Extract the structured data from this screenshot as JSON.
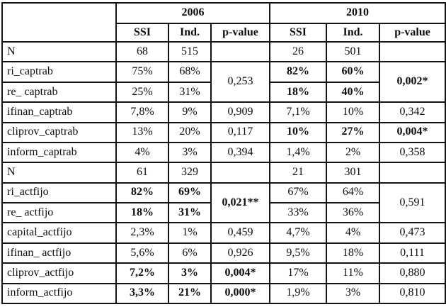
{
  "colors": {
    "background": "#ffffff",
    "border": "#141414",
    "text": "#0d0d0d"
  },
  "table": {
    "year_headers": [
      "2006",
      "2010"
    ],
    "sub_headers": [
      "SSI",
      "Ind.",
      "p-value",
      "SSI",
      "Ind.",
      "p-value"
    ],
    "rows": [
      {
        "cells": [
          {
            "col": "label",
            "text": "N"
          },
          {
            "col": "ssi_2006",
            "text": "68"
          },
          {
            "col": "ind_2006",
            "text": "515"
          },
          {
            "col": "p_2006",
            "text": ""
          },
          {
            "col": "ssi_2010",
            "text": "26"
          },
          {
            "col": "ind_2010",
            "text": "501"
          },
          {
            "col": "p_2010",
            "text": ""
          }
        ]
      },
      {
        "cells": [
          {
            "col": "label",
            "text": "ri_captrab"
          },
          {
            "col": "ssi_2006",
            "text": "75%"
          },
          {
            "col": "ind_2006",
            "text": "68%"
          },
          {
            "col": "p_2006",
            "text": "0,253",
            "rowspan": 2
          },
          {
            "col": "ssi_2010",
            "text": "82%",
            "bold": true
          },
          {
            "col": "ind_2010",
            "text": "60%",
            "bold": true
          },
          {
            "col": "p_2010",
            "text": "0,002*",
            "bold": true,
            "rowspan": 2
          }
        ]
      },
      {
        "cells": [
          {
            "col": "label",
            "text": "re_ captrab"
          },
          {
            "col": "ssi_2006",
            "text": "25%"
          },
          {
            "col": "ind_2006",
            "text": "31%"
          },
          {
            "col": "ssi_2010",
            "text": "18%",
            "bold": true
          },
          {
            "col": "ind_2010",
            "text": "40%",
            "bold": true
          }
        ]
      },
      {
        "cells": [
          {
            "col": "label",
            "text": "ifinan_captrab"
          },
          {
            "col": "ssi_2006",
            "text": "7,8%"
          },
          {
            "col": "ind_2006",
            "text": "9%"
          },
          {
            "col": "p_2006",
            "text": "0,909"
          },
          {
            "col": "ssi_2010",
            "text": "7,1%"
          },
          {
            "col": "ind_2010",
            "text": "10%"
          },
          {
            "col": "p_2010",
            "text": "0,342"
          }
        ]
      },
      {
        "cells": [
          {
            "col": "label",
            "text": "cliprov_captrab"
          },
          {
            "col": "ssi_2006",
            "text": "13%"
          },
          {
            "col": "ind_2006",
            "text": "20%"
          },
          {
            "col": "p_2006",
            "text": "0,117"
          },
          {
            "col": "ssi_2010",
            "text": "10%",
            "bold": true
          },
          {
            "col": "ind_2010",
            "text": "27%",
            "bold": true
          },
          {
            "col": "p_2010",
            "text": "0,004*",
            "bold": true
          }
        ]
      },
      {
        "cells": [
          {
            "col": "label",
            "text": "inform_captrab"
          },
          {
            "col": "ssi_2006",
            "text": "4%"
          },
          {
            "col": "ind_2006",
            "text": "3%"
          },
          {
            "col": "p_2006",
            "text": "0,394"
          },
          {
            "col": "ssi_2010",
            "text": "1,4%"
          },
          {
            "col": "ind_2010",
            "text": "2%"
          },
          {
            "col": "p_2010",
            "text": "0,358"
          }
        ]
      },
      {
        "cells": [
          {
            "col": "label",
            "text": "N"
          },
          {
            "col": "ssi_2006",
            "text": "61"
          },
          {
            "col": "ind_2006",
            "text": "329"
          },
          {
            "col": "p_2006",
            "text": ""
          },
          {
            "col": "ssi_2010",
            "text": "21"
          },
          {
            "col": "ind_2010",
            "text": "301"
          },
          {
            "col": "p_2010",
            "text": ""
          }
        ]
      },
      {
        "cells": [
          {
            "col": "label",
            "text": "ri_actfijo"
          },
          {
            "col": "ssi_2006",
            "text": "82%",
            "bold": true
          },
          {
            "col": "ind_2006",
            "text": "69%",
            "bold": true
          },
          {
            "col": "p_2006",
            "text": "0,021**",
            "bold": true,
            "rowspan": 2
          },
          {
            "col": "ssi_2010",
            "text": "67%"
          },
          {
            "col": "ind_2010",
            "text": "64%"
          },
          {
            "col": "p_2010",
            "text": "0,591",
            "rowspan": 2
          }
        ]
      },
      {
        "cells": [
          {
            "col": "label",
            "text": "re_ actfijo"
          },
          {
            "col": "ssi_2006",
            "text": "18%",
            "bold": true
          },
          {
            "col": "ind_2006",
            "text": "31%",
            "bold": true
          },
          {
            "col": "ssi_2010",
            "text": "33%"
          },
          {
            "col": "ind_2010",
            "text": "36%"
          }
        ]
      },
      {
        "cells": [
          {
            "col": "label",
            "text": "capital_actfijo"
          },
          {
            "col": "ssi_2006",
            "text": "2,3%"
          },
          {
            "col": "ind_2006",
            "text": "1%"
          },
          {
            "col": "p_2006",
            "text": "0,459"
          },
          {
            "col": "ssi_2010",
            "text": "4,7%"
          },
          {
            "col": "ind_2010",
            "text": "4%"
          },
          {
            "col": "p_2010",
            "text": "0,473"
          }
        ]
      },
      {
        "cells": [
          {
            "col": "label",
            "text": "ifinan_ actfijo"
          },
          {
            "col": "ssi_2006",
            "text": "5,6%"
          },
          {
            "col": "ind_2006",
            "text": "6%"
          },
          {
            "col": "p_2006",
            "text": "0,926"
          },
          {
            "col": "ssi_2010",
            "text": "9,5%"
          },
          {
            "col": "ind_2010",
            "text": "18%"
          },
          {
            "col": "p_2010",
            "text": "0,111"
          }
        ]
      },
      {
        "cells": [
          {
            "col": "label",
            "text": "cliprov_actfijo"
          },
          {
            "col": "ssi_2006",
            "text": "7,2%",
            "bold": true
          },
          {
            "col": "ind_2006",
            "text": "3%",
            "bold": true
          },
          {
            "col": "p_2006",
            "text": "0,004*",
            "bold": true
          },
          {
            "col": "ssi_2010",
            "text": "17%"
          },
          {
            "col": "ind_2010",
            "text": "11%"
          },
          {
            "col": "p_2010",
            "text": "0,880"
          }
        ]
      },
      {
        "cells": [
          {
            "col": "label",
            "text": "inform_actfijo"
          },
          {
            "col": "ssi_2006",
            "text": "3,3%",
            "bold": true
          },
          {
            "col": "ind_2006",
            "text": "21%",
            "bold": true
          },
          {
            "col": "p_2006",
            "text": "0,000*",
            "bold": true
          },
          {
            "col": "ssi_2010",
            "text": "1,9%"
          },
          {
            "col": "ind_2010",
            "text": "3%"
          },
          {
            "col": "p_2010",
            "text": "0,810"
          }
        ]
      }
    ]
  }
}
